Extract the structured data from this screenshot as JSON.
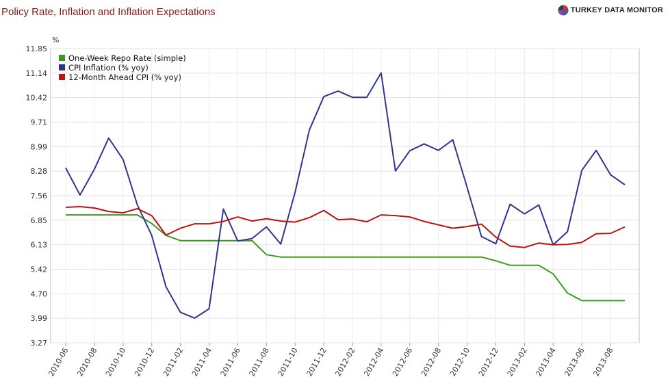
{
  "header": {
    "title": "Policy Rate, Inflation and Inflation Expectations",
    "brand": "TURKEY DATA MONITOR",
    "brand_logo_colors": [
      "#c0392b",
      "#2c3e50",
      "#3b5bab",
      "#8e44ad"
    ]
  },
  "chart_data": {
    "type": "line",
    "title": "Policy Rate, Inflation and Inflation Expectations",
    "ylabel": "%",
    "xlabel": "",
    "ylim": [
      3.27,
      11.85
    ],
    "yticks": [
      "11.85",
      "11.14",
      "10.42",
      "9.71",
      "8.99",
      "8.28",
      "7.56",
      "6.85",
      "6.13",
      "5.42",
      "4.70",
      "3.99",
      "3.27"
    ],
    "grid": true,
    "legend_position": "top-left",
    "x": [
      "2010-06",
      "2010-07",
      "2010-08",
      "2010-09",
      "2010-10",
      "2010-11",
      "2010-12",
      "2011-01",
      "2011-02",
      "2011-03",
      "2011-04",
      "2011-05",
      "2011-06",
      "2011-07",
      "2011-08",
      "2011-09",
      "2011-10",
      "2011-11",
      "2011-12",
      "2012-01",
      "2012-02",
      "2012-03",
      "2012-04",
      "2012-05",
      "2012-06",
      "2012-07",
      "2012-08",
      "2012-09",
      "2012-10",
      "2012-11",
      "2012-12",
      "2013-01",
      "2013-02",
      "2013-03",
      "2013-04",
      "2013-05",
      "2013-06",
      "2013-07",
      "2013-08",
      "2013-09"
    ],
    "xtick_labels": [
      "2010-06",
      "2010-08",
      "2010-10",
      "2010-12",
      "2011-02",
      "2011-04",
      "2011-06",
      "2011-08",
      "2011-10",
      "2011-12",
      "2012-02",
      "2012-04",
      "2012-06",
      "2012-08",
      "2012-10",
      "2012-12",
      "2013-02",
      "2013-04",
      "2013-06",
      "2013-08"
    ],
    "series": [
      {
        "name": "One-Week Repo Rate (simple)",
        "color": "#3a9a1a",
        "values": [
          7.0,
          7.0,
          7.0,
          7.0,
          7.0,
          7.0,
          6.75,
          6.4,
          6.25,
          6.25,
          6.25,
          6.25,
          6.25,
          6.25,
          5.84,
          5.77,
          5.77,
          5.77,
          5.77,
          5.77,
          5.77,
          5.77,
          5.77,
          5.77,
          5.77,
          5.77,
          5.77,
          5.77,
          5.77,
          5.77,
          5.66,
          5.53,
          5.53,
          5.53,
          5.28,
          4.72,
          4.5,
          4.5,
          4.5,
          4.5
        ]
      },
      {
        "name": "CPI Inflation (% yoy)",
        "color": "#30358c",
        "values": [
          8.37,
          7.58,
          8.33,
          9.24,
          8.62,
          7.29,
          6.4,
          4.9,
          4.16,
          3.99,
          4.26,
          7.17,
          6.24,
          6.31,
          6.65,
          6.15,
          7.66,
          9.48,
          10.45,
          10.61,
          10.43,
          10.43,
          11.14,
          8.28,
          8.87,
          9.07,
          8.88,
          9.19,
          7.8,
          6.37,
          6.16,
          7.31,
          7.03,
          7.29,
          6.13,
          6.51,
          8.3,
          8.88,
          8.17,
          7.88
        ]
      },
      {
        "name": "12-Month Ahead CPI (% yoy)",
        "color": "#b81212",
        "values": [
          7.22,
          7.24,
          7.2,
          7.1,
          7.06,
          7.18,
          6.98,
          6.41,
          6.61,
          6.74,
          6.74,
          6.81,
          6.94,
          6.82,
          6.89,
          6.82,
          6.79,
          6.92,
          7.13,
          6.86,
          6.88,
          6.8,
          7.0,
          6.98,
          6.94,
          6.81,
          6.71,
          6.61,
          6.66,
          6.73,
          6.35,
          6.09,
          6.05,
          6.18,
          6.13,
          6.14,
          6.2,
          6.45,
          6.46,
          6.65
        ]
      }
    ]
  }
}
